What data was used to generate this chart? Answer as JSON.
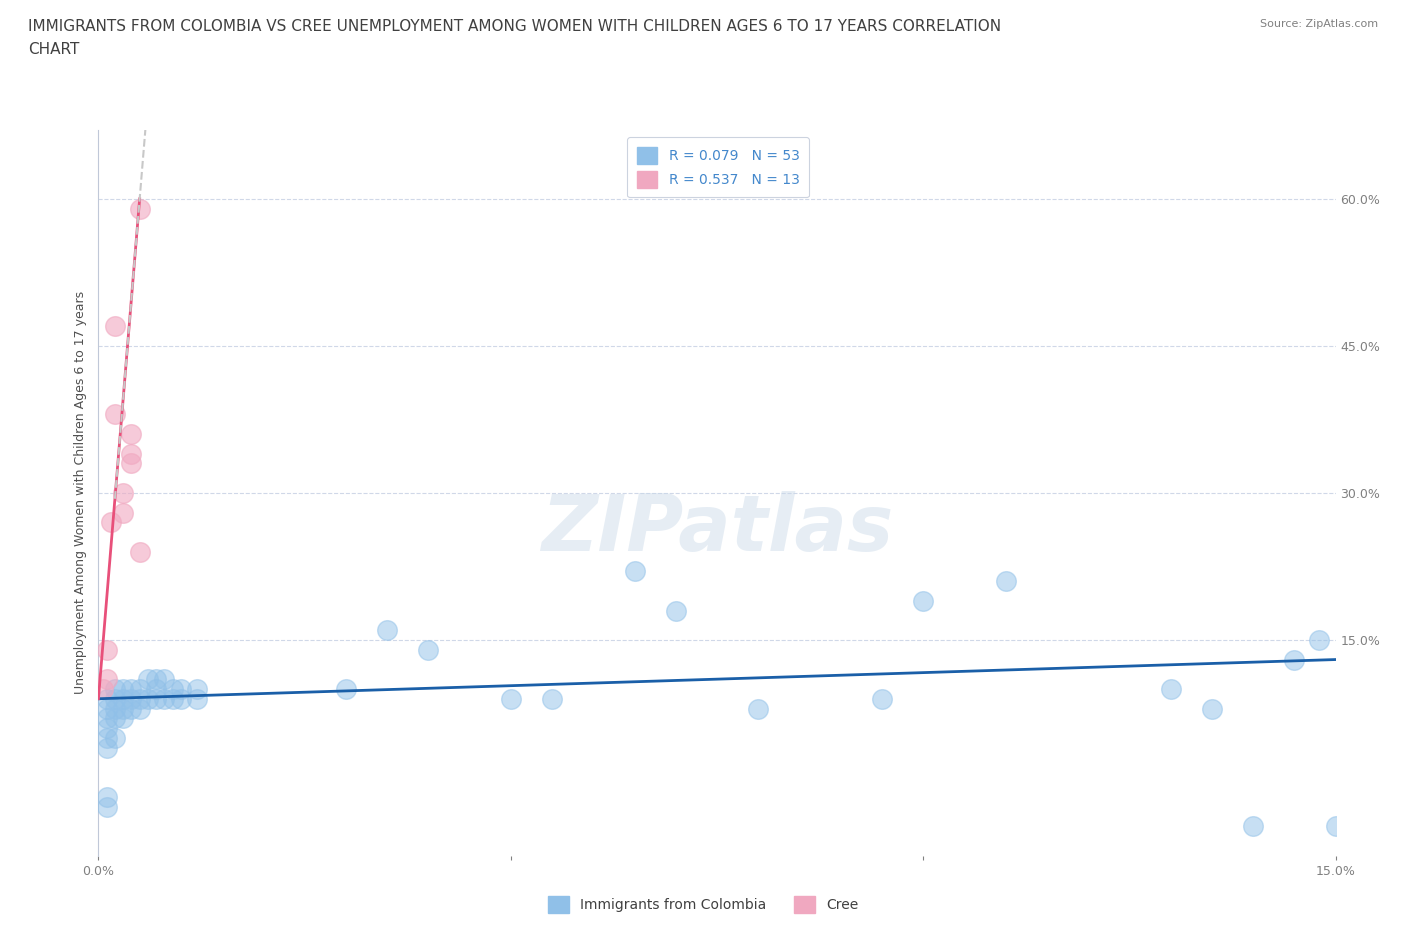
{
  "title_line1": "IMMIGRANTS FROM COLOMBIA VS CREE UNEMPLOYMENT AMONG WOMEN WITH CHILDREN AGES 6 TO 17 YEARS CORRELATION",
  "title_line2": "CHART",
  "source": "Source: ZipAtlas.com",
  "ylabel": "Unemployment Among Women with Children Ages 6 to 17 years",
  "ytick_labels": [
    "15.0%",
    "30.0%",
    "45.0%",
    "60.0%"
  ],
  "ytick_values": [
    0.15,
    0.3,
    0.45,
    0.6
  ],
  "xlim": [
    0.0,
    0.15
  ],
  "ylim": [
    -0.07,
    0.67
  ],
  "watermark": "ZIPatlas",
  "legend_entries": [
    {
      "label": "R = 0.079   N = 53",
      "color": "#a8d0f0"
    },
    {
      "label": "R = 0.537   N = 13",
      "color": "#f8b8cc"
    }
  ],
  "legend_bottom": [
    "Immigrants from Colombia",
    "Cree"
  ],
  "colombia_x": [
    0.001,
    0.001,
    0.001,
    0.001,
    0.001,
    0.001,
    0.001,
    0.001,
    0.002,
    0.002,
    0.002,
    0.002,
    0.002,
    0.003,
    0.003,
    0.003,
    0.003,
    0.004,
    0.004,
    0.004,
    0.005,
    0.005,
    0.005,
    0.006,
    0.006,
    0.007,
    0.007,
    0.007,
    0.008,
    0.008,
    0.009,
    0.009,
    0.01,
    0.01,
    0.012,
    0.012,
    0.03,
    0.035,
    0.04,
    0.05,
    0.055,
    0.065,
    0.07,
    0.08,
    0.095,
    0.1,
    0.11,
    0.13,
    0.135,
    0.14,
    0.145,
    0.148,
    0.15
  ],
  "colombia_y": [
    0.09,
    0.08,
    0.07,
    0.06,
    0.05,
    0.04,
    -0.01,
    -0.02,
    0.1,
    0.09,
    0.08,
    0.07,
    0.05,
    0.1,
    0.09,
    0.08,
    0.07,
    0.1,
    0.09,
    0.08,
    0.1,
    0.09,
    0.08,
    0.11,
    0.09,
    0.11,
    0.1,
    0.09,
    0.11,
    0.09,
    0.1,
    0.09,
    0.1,
    0.09,
    0.1,
    0.09,
    0.1,
    0.16,
    0.14,
    0.09,
    0.09,
    0.22,
    0.18,
    0.08,
    0.09,
    0.19,
    0.21,
    0.1,
    0.08,
    -0.04,
    0.13,
    0.15,
    -0.04
  ],
  "cree_x": [
    0.0005,
    0.001,
    0.001,
    0.0015,
    0.002,
    0.002,
    0.003,
    0.003,
    0.004,
    0.004,
    0.004,
    0.005,
    0.005
  ],
  "cree_y": [
    0.1,
    0.14,
    0.11,
    0.27,
    0.47,
    0.38,
    0.3,
    0.28,
    0.33,
    0.36,
    0.34,
    0.24,
    0.59
  ],
  "blue_color": "#90c0e8",
  "pink_color": "#f0a8c0",
  "trend_blue_color": "#1a5fa8",
  "trend_pink_color": "#e8507a",
  "trend_gray_color": "#c8c8c8",
  "background_color": "#ffffff",
  "grid_color": "#d0d8e8",
  "title_color": "#404040",
  "axis_color": "#4488cc",
  "title_fontsize": 11,
  "source_fontsize": 8,
  "label_fontsize": 9
}
